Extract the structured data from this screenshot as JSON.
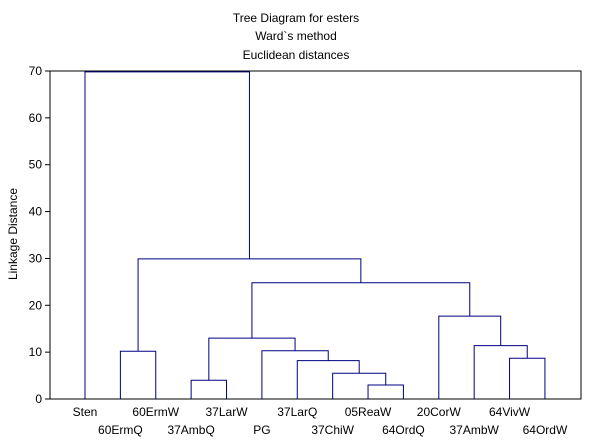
{
  "chart_data": {
    "type": "dendrogram",
    "title": "Tree Diagram for esters",
    "subtitle_lines": [
      "Ward`s method",
      "Euclidean distances"
    ],
    "ylabel": "Linkage Distance",
    "xlabel": "",
    "ylim": [
      0,
      70
    ],
    "yticks": [
      0,
      10,
      20,
      30,
      40,
      50,
      60,
      70
    ],
    "leaves": [
      "Sten",
      "60ErmQ",
      "60ErmW",
      "37AmbQ",
      "37LarW",
      "PG",
      "37LarQ",
      "37ChiW",
      "05ReaW",
      "64OrdQ",
      "20CorW",
      "37AmbW",
      "64VivW",
      "64OrdW"
    ],
    "merges": [
      {
        "id": "m1",
        "left": "37AmbQ",
        "right": "37LarW",
        "height": 4
      },
      {
        "id": "m2",
        "left": "05ReaW",
        "right": "64OrdQ",
        "height": 3
      },
      {
        "id": "m3",
        "left": "37ChiW",
        "right": "m2",
        "height": 5.5
      },
      {
        "id": "m4",
        "left": "37LarQ",
        "right": "m3",
        "height": 8.2
      },
      {
        "id": "m5",
        "left": "PG",
        "right": "m4",
        "height": 10.3
      },
      {
        "id": "m6",
        "left": "m1",
        "right": "m5",
        "height": 13
      },
      {
        "id": "m7",
        "left": "64VivW",
        "right": "64OrdW",
        "height": 8.7
      },
      {
        "id": "m8",
        "left": "37AmbW",
        "right": "m7",
        "height": 11.4
      },
      {
        "id": "m9",
        "left": "20CorW",
        "right": "m8",
        "height": 17.7
      },
      {
        "id": "m10",
        "left": "m6",
        "right": "m9",
        "height": 24.8
      },
      {
        "id": "m11",
        "left": "60ErmQ",
        "right": "60ErmW",
        "height": 10.2
      },
      {
        "id": "m12",
        "left": "m11",
        "right": "m10",
        "height": 29.9
      },
      {
        "id": "m13",
        "left": "Sten",
        "right": "m12",
        "height": 69.8
      }
    ],
    "colors": {
      "links": "#000080",
      "axes": "#000000"
    },
    "grid": false
  }
}
